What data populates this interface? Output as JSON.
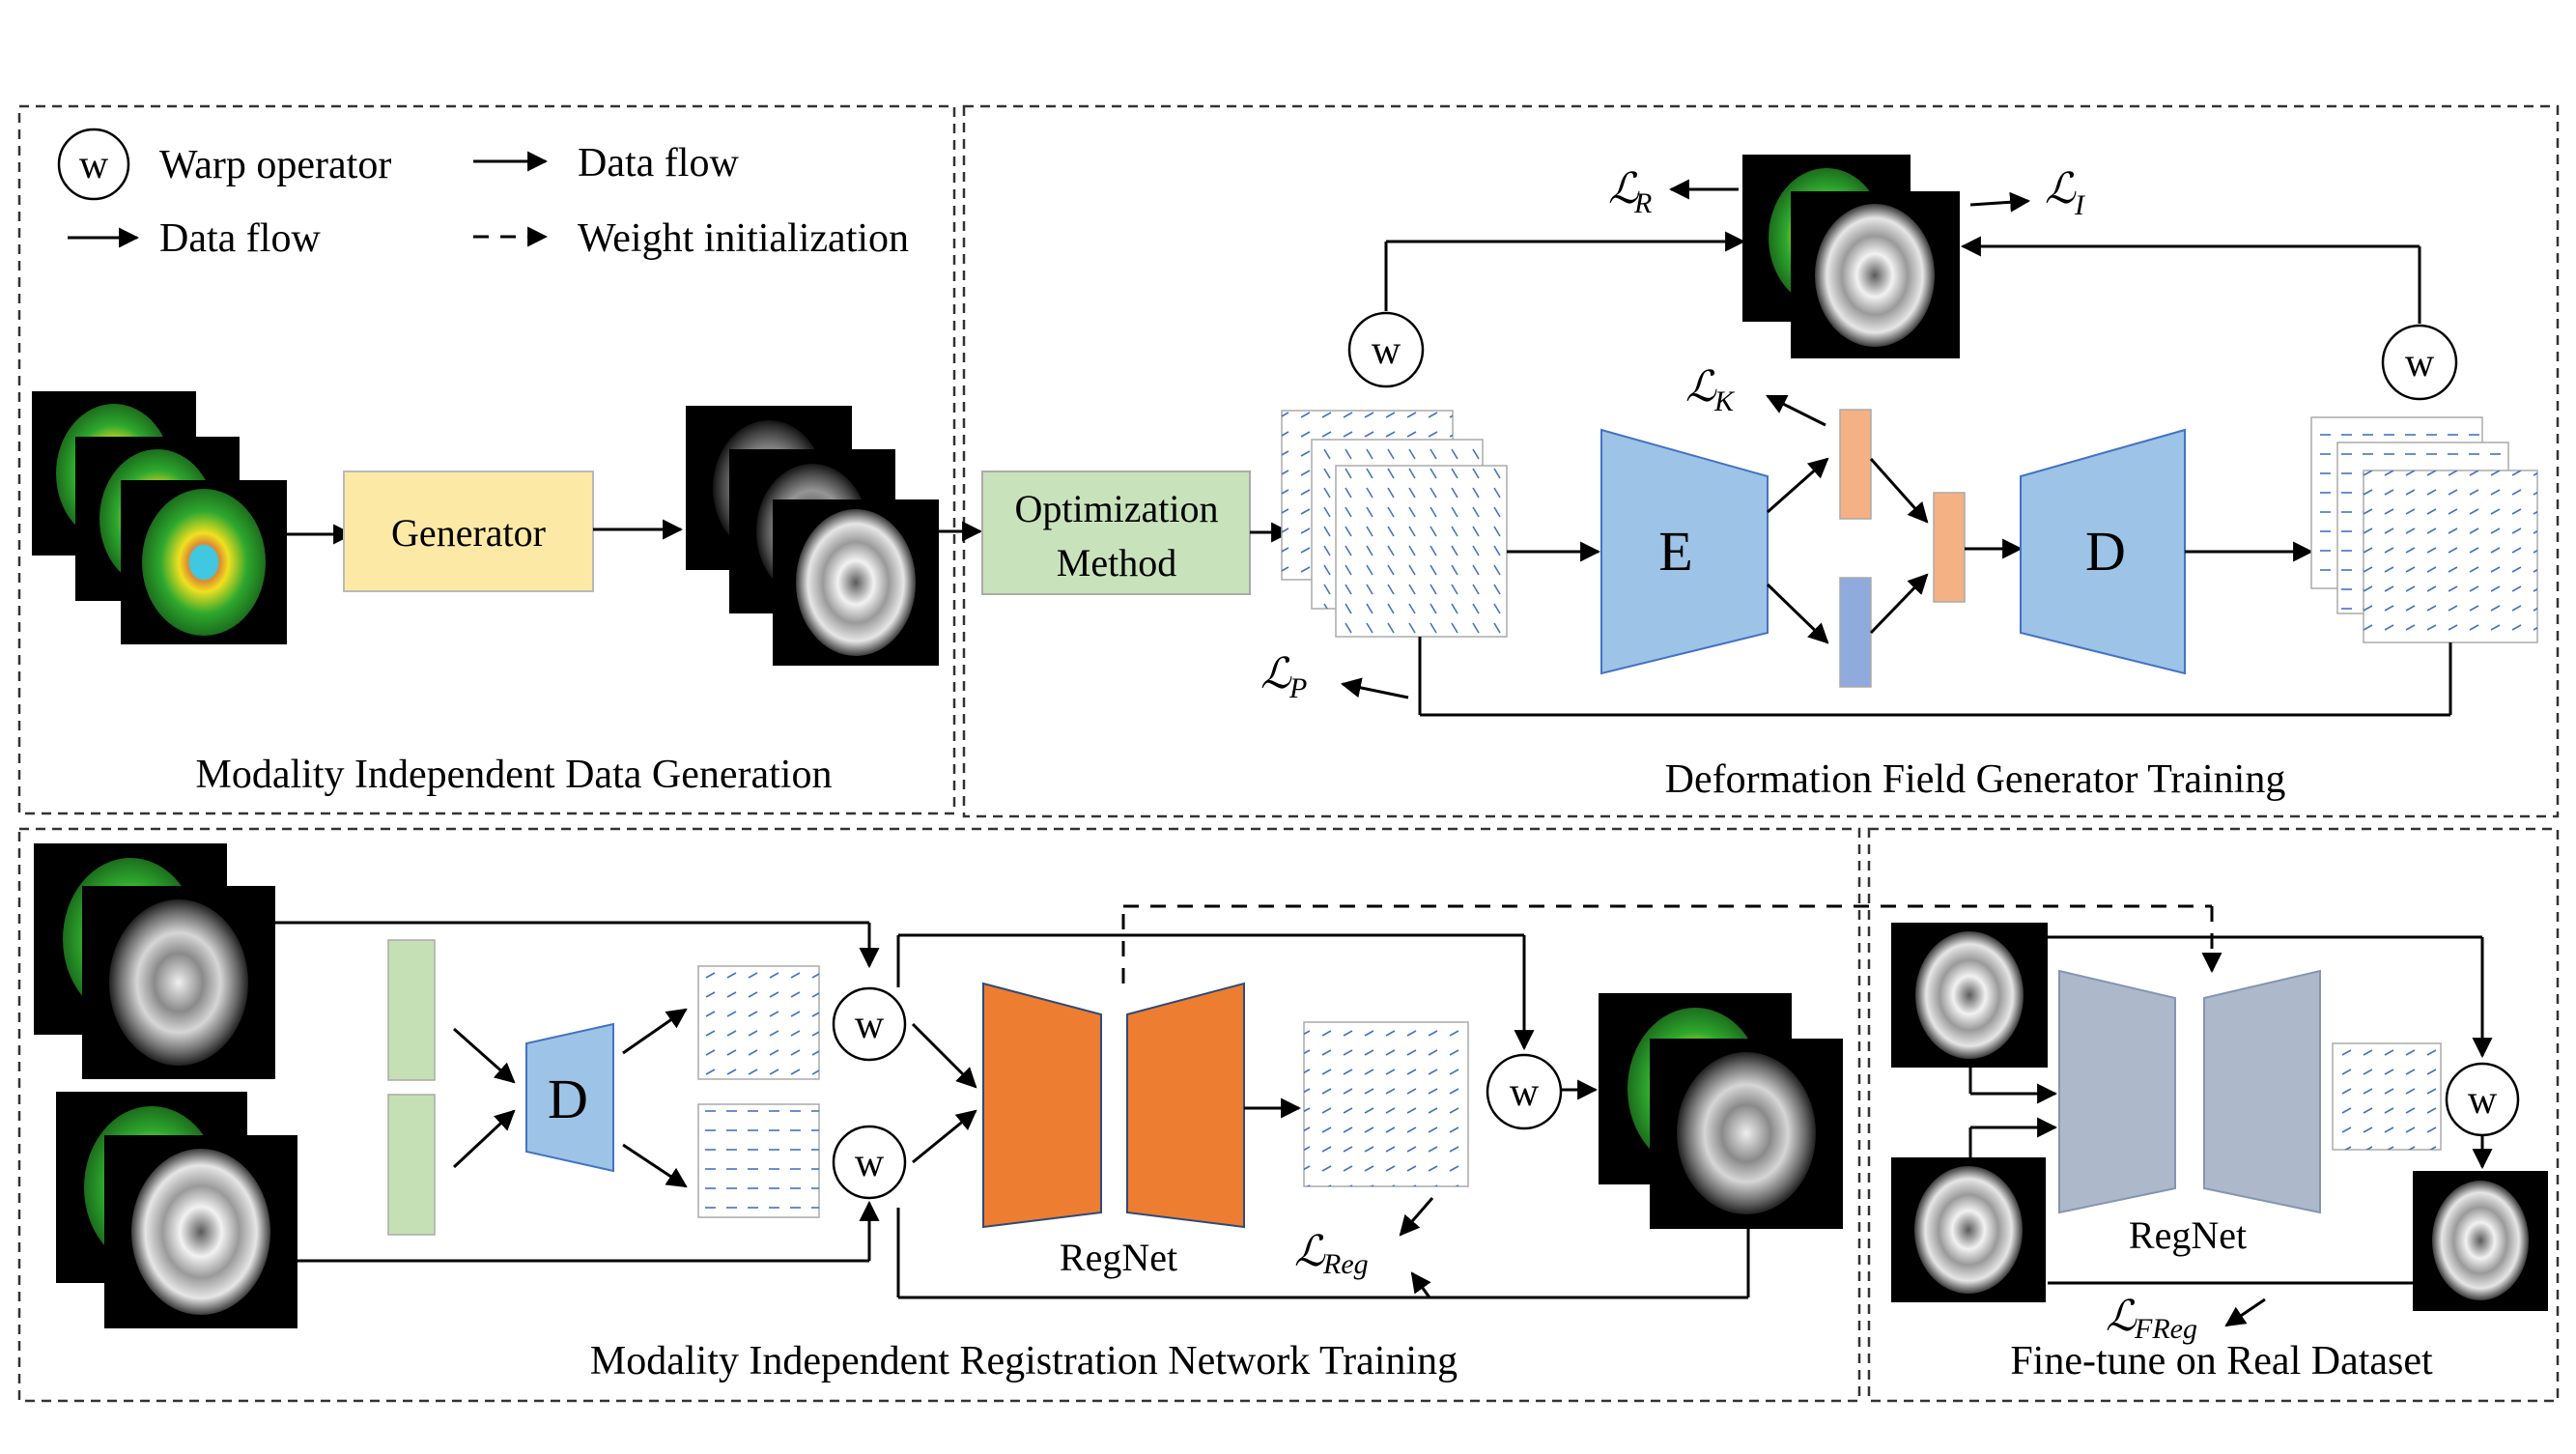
{
  "legend": {
    "warp_symbol": "w",
    "warp_label": "Warp operator",
    "data_flow_label_1": "Data flow",
    "data_flow_label_2": "Data flow",
    "weight_init_label": "Weight initialization"
  },
  "panels": {
    "data_generation": "Modality Independent Data Generation",
    "deformation_training": "Deformation Field Generator Training",
    "registration_training": "Modality Independent Registration Network Training",
    "finetune": "Fine-tune on Real Dataset"
  },
  "blocks": {
    "generator": "Generator",
    "optimization_line1": "Optimization",
    "optimization_line2": "Method",
    "encoder": "E",
    "decoder": "D",
    "decoder2": "D",
    "regnet_1": "RegNet",
    "regnet_2": "RegNet",
    "warp": "w"
  },
  "losses": {
    "script_L": "ℒ",
    "R": "R",
    "I": "I",
    "K": "K",
    "P": "P",
    "Reg": "Reg",
    "FReg": "FReg"
  },
  "colors": {
    "generator": "#fde9a6",
    "optimization": "#c8e2bb",
    "encoder_decoder": "#9dc3e6",
    "latent_orange": "#f4b183",
    "latent_blue": "#8faadc",
    "latent_green": "#c5e0b4",
    "regnet": "#ed7d31",
    "regnet_finetune": "#adb9ca",
    "field_arrows": "#4472c4"
  }
}
